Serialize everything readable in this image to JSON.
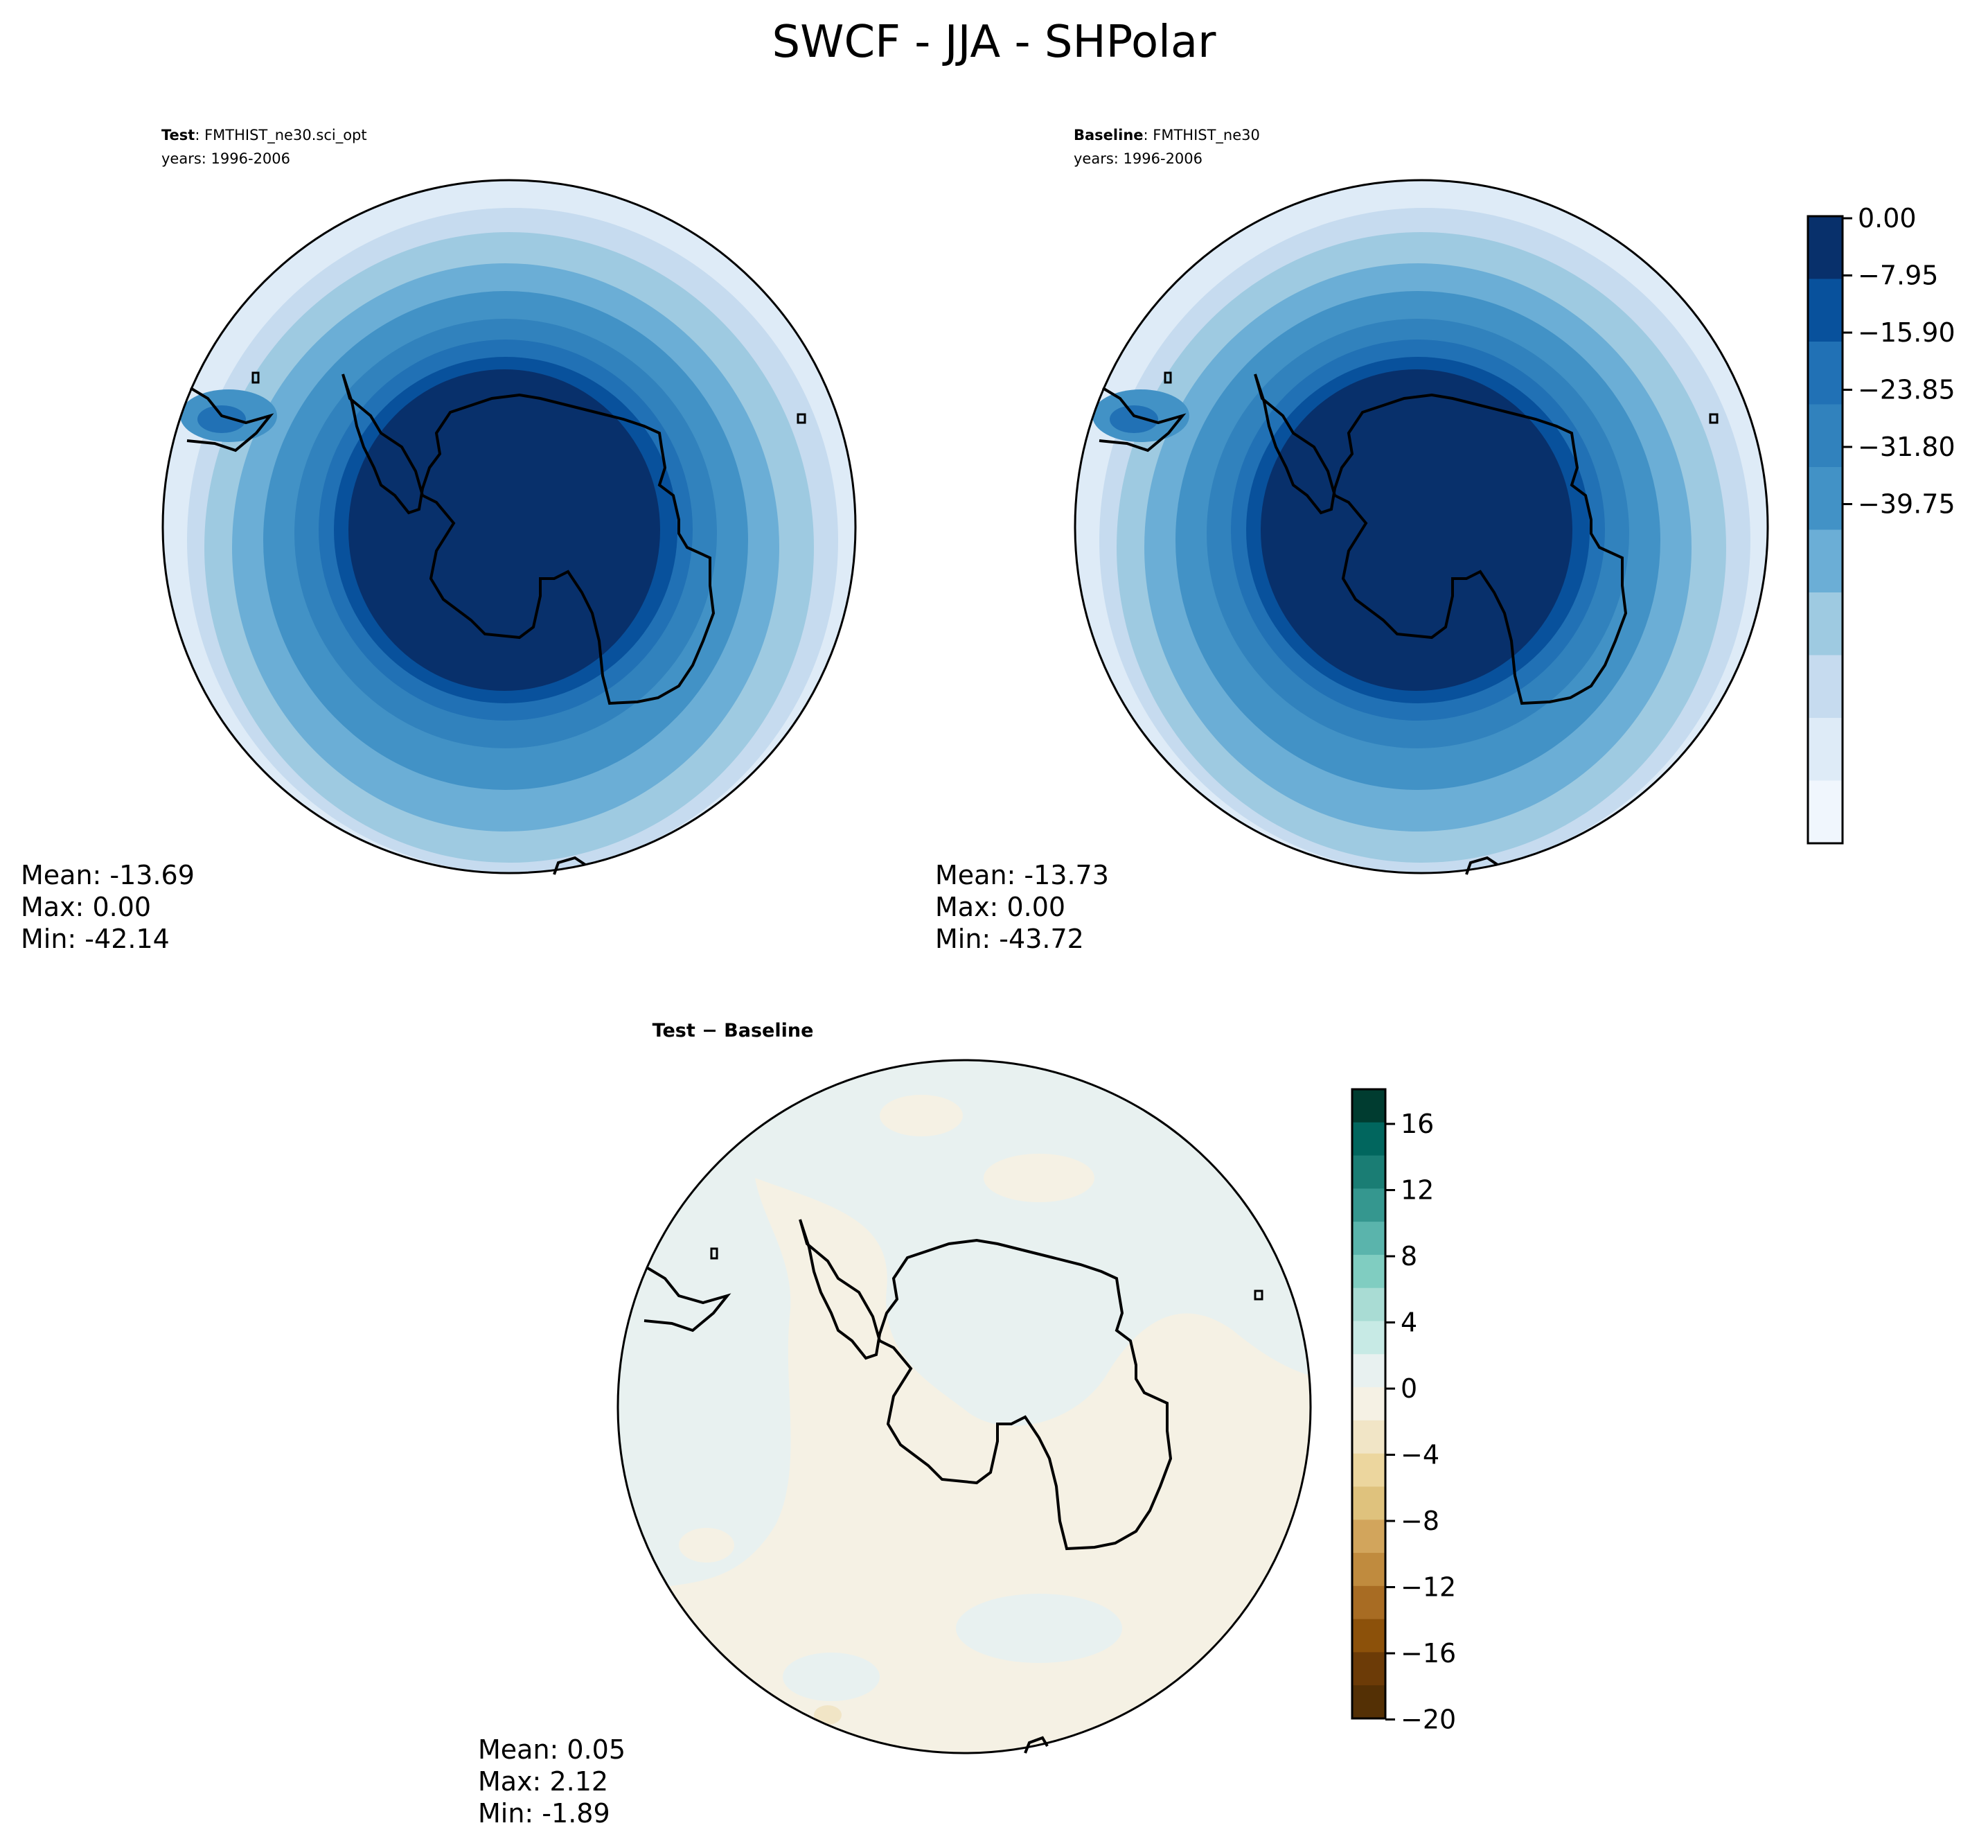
{
  "figure": {
    "title": "SWCF - JJA - SHPolar"
  },
  "panels": [
    {
      "id": "test",
      "label_bold": "Test",
      "label_text": ": FMTHIST_ne30.sci_opt",
      "years": "years: 1996-2006",
      "stats": [
        "Mean: -13.69",
        "Max:  0.00",
        "Min: -42.14"
      ]
    },
    {
      "id": "baseline",
      "label_bold": "Baseline",
      "label_text": ": FMTHIST_ne30",
      "years": "years: 1996-2006",
      "stats": [
        "Mean: -13.73",
        "Max:  0.00",
        "Min: -43.72"
      ]
    },
    {
      "id": "diff",
      "title": "Test − Baseline",
      "stats": [
        "Mean:  0.05",
        "Max:  2.12",
        "Min: -1.89"
      ]
    }
  ],
  "colorbars": {
    "main": {
      "colors": [
        "#08306b",
        "#08519c",
        "#2171b5",
        "#3182bd",
        "#4292c6",
        "#6baed6",
        "#9ecae1",
        "#c6dbef",
        "#deebf7",
        "#f0f6fd"
      ],
      "tick_labels": [
        "0.00",
        "−7.95",
        "−15.90",
        "−23.85",
        "−31.80",
        "−39.75"
      ]
    },
    "diff": {
      "colors": [
        "#003c30",
        "#01665e",
        "#1a7d74",
        "#35978f",
        "#5ab4ac",
        "#80cdc1",
        "#a9dcd4",
        "#c7eae5",
        "#e8f1f0",
        "#f5f1e4",
        "#f1e5c6",
        "#ecd69e",
        "#dfc27d",
        "#d2a55c",
        "#c08b3e",
        "#a86c23",
        "#8c510a",
        "#6c3b07",
        "#543005"
      ],
      "tick_labels": [
        "16",
        "12",
        "8",
        "4",
        "0",
        "−4",
        "−8",
        "−12",
        "−16",
        "−20"
      ]
    }
  }
}
